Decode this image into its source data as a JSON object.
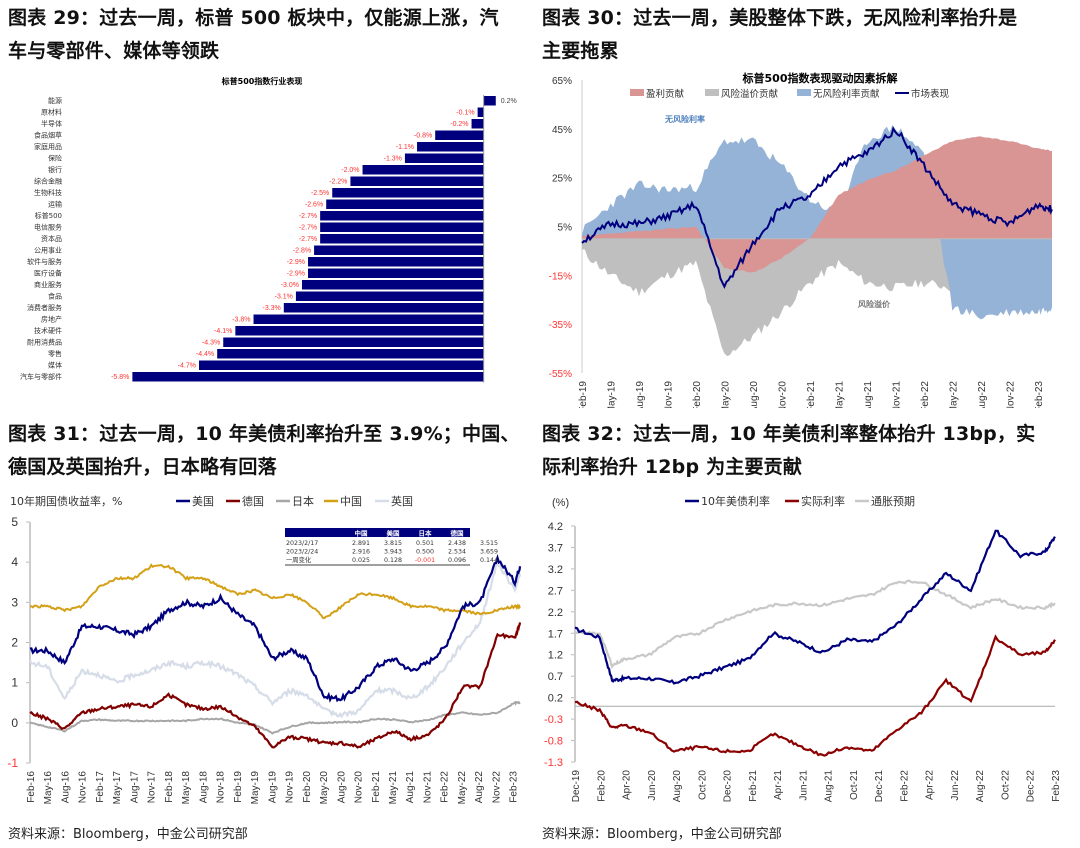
{
  "figures": [
    {
      "title_line1": "图表 29：过去一周，标普 500 板块中，仅能源上涨，汽",
      "title_line2": "车与零部件、媒体等领跌"
    },
    {
      "title_line1": "图表 30：过去一周，美股整体下跌，无风险利率抬升是",
      "title_line2": "主要拖累"
    },
    {
      "title_line1": "图表 31：过去一周，10 年美债利率抬升至 3.9%；中国、",
      "title_line2": "德国及英国抬升，日本略有回落",
      "source": "资料来源：Bloomberg，中金公司研究部"
    },
    {
      "title_line1": "图表 32：过去一周，10 年美债利率整体抬升 13bp，实",
      "title_line2": "际利率抬升 12bp 为主要贡献",
      "source": "资料来源：Bloomberg，中金公司研究部"
    }
  ],
  "colors": {
    "navy": "#00007f",
    "negative_label": "#ff3333",
    "earnings": "#d99594",
    "risk_premium": "#bfbfbf",
    "riskfree": "#95b3d7",
    "germany": "#800000",
    "japan": "#a6a6a6",
    "china": "#d4a017",
    "uk": "#d6dde8",
    "real_rate": "#8b0000",
    "inflation": "#c8c8c8"
  },
  "chart_data": [
    {
      "type": "bar",
      "orientation": "horizontal",
      "title": "标普500指数行业表现",
      "categories": [
        "能源",
        "原材料",
        "半导体",
        "食品烟草",
        "家庭用品",
        "保险",
        "银行",
        "综合金融",
        "生物科技",
        "运输",
        "标普500",
        "电信服务",
        "资本品",
        "公用事业",
        "软件与服务",
        "医疗设备",
        "商业服务",
        "食品",
        "消费者服务",
        "房地产",
        "技术硬件",
        "耐用消费品",
        "零售",
        "媒体",
        "汽车与零部件"
      ],
      "values": [
        0.2,
        -0.1,
        -0.2,
        -0.8,
        -1.1,
        -1.3,
        -2.0,
        -2.2,
        -2.5,
        -2.6,
        -2.7,
        -2.7,
        -2.7,
        -2.8,
        -2.9,
        -2.9,
        -3.0,
        -3.1,
        -3.3,
        -3.8,
        -4.1,
        -4.3,
        -4.4,
        -4.7,
        -5.8
      ],
      "labels": [
        "0.2%",
        "-0.1%",
        "-0.2%",
        "-0.8%",
        "-1.1%",
        "-1.3%",
        "-2.0%",
        "-2.2%",
        "-2.5%",
        "-2.6%",
        "-2.7%",
        "-2.7%",
        "-2.7%",
        "-2.8%",
        "-2.9%",
        "-2.9%",
        "-3.0%",
        "-3.1%",
        "-3.3%",
        "-3.8%",
        "-4.1%",
        "-4.3%",
        "-4.4%",
        "-4.7%",
        "-5.8%"
      ],
      "unit": "%",
      "xlim": [
        -6.5,
        0.6
      ]
    },
    {
      "type": "area",
      "title": "标普500指数表现驱动因素拆解",
      "legend": [
        "盈利贡献",
        "风险溢价贡献",
        "无风险利率贡献",
        "市场表现"
      ],
      "legend_position": "top",
      "yticks": [
        "65%",
        "45%",
        "25%",
        "5%",
        "-15%",
        "-35%",
        "-55%"
      ],
      "ylim": [
        -55,
        65
      ],
      "xticks": [
        "Feb-19",
        "May-19",
        "Aug-19",
        "Nov-19",
        "Feb-20",
        "May-20",
        "Aug-20",
        "Nov-20",
        "Feb-21",
        "May-21",
        "Aug-21",
        "Nov-21",
        "Feb-22",
        "May-22",
        "Aug-22",
        "Nov-22",
        "Feb-23"
      ],
      "annotations": [
        "无风险利率",
        "风险溢价"
      ],
      "x": [
        0,
        1,
        2,
        3,
        4,
        5,
        6,
        7,
        8,
        9,
        10,
        11,
        12,
        13,
        14,
        15,
        16,
        16.5
      ],
      "series": [
        {
          "name": "盈利贡献",
          "values": [
            1,
            2,
            3,
            4,
            5,
            -12,
            -14,
            -8,
            0,
            18,
            24,
            28,
            34,
            40,
            42,
            40,
            37,
            36
          ]
        },
        {
          "name": "风险溢价贡献",
          "values": [
            -5,
            -15,
            -22,
            -15,
            -10,
            -48,
            -40,
            -30,
            -18,
            -10,
            -18,
            -20,
            -18,
            -20,
            -15,
            -8,
            -4,
            -3
          ]
        },
        {
          "name": "无风险利率贡献",
          "values": [
            3,
            14,
            22,
            20,
            21,
            40,
            40,
            30,
            16,
            10,
            40,
            46,
            35,
            -28,
            -32,
            -30,
            -30,
            -28
          ]
        },
        {
          "name": "市场表现",
          "values": [
            -1,
            6,
            6,
            9,
            14,
            -20,
            -2,
            13,
            17,
            30,
            35,
            45,
            30,
            14,
            10,
            6,
            14,
            12
          ]
        }
      ]
    },
    {
      "type": "line",
      "title": "10年期国债收益率，%",
      "legend": [
        "美国",
        "德国",
        "日本",
        "中国",
        "英国"
      ],
      "legend_position": "top",
      "yticks": [
        "5",
        "4",
        "3",
        "2",
        "1",
        "0",
        "-1"
      ],
      "ylim": [
        -1,
        5
      ],
      "xticks": [
        "Feb-16",
        "May-16",
        "Aug-16",
        "Nov-16",
        "Feb-17",
        "May-17",
        "Aug-17",
        "Nov-17",
        "Feb-18",
        "May-18",
        "Aug-18",
        "Nov-18",
        "Feb-19",
        "May-19",
        "Aug-19",
        "Nov-19",
        "Feb-20",
        "May-20",
        "Aug-20",
        "Nov-20",
        "Feb-21",
        "May-21",
        "Aug-21",
        "Nov-21",
        "Feb-22",
        "May-22",
        "Aug-22",
        "Nov-22",
        "Feb-23"
      ],
      "x": [
        0,
        1,
        2,
        3,
        4,
        5,
        6,
        7,
        8,
        9,
        10,
        11,
        12,
        13,
        14,
        15,
        16,
        17,
        18,
        19,
        20,
        21,
        22,
        23,
        24,
        25,
        26,
        27,
        28,
        28.3
      ],
      "series": [
        {
          "name": "美国",
          "values": [
            1.8,
            1.8,
            1.5,
            2.4,
            2.4,
            2.3,
            2.2,
            2.4,
            2.8,
            3.0,
            2.9,
            3.1,
            2.7,
            2.4,
            1.6,
            1.8,
            1.6,
            0.65,
            0.6,
            0.9,
            1.4,
            1.6,
            1.3,
            1.5,
            1.9,
            2.9,
            3.0,
            4.1,
            3.5,
            3.9
          ]
        },
        {
          "name": "德国",
          "values": [
            0.25,
            0.1,
            -0.15,
            0.25,
            0.35,
            0.4,
            0.45,
            0.4,
            0.7,
            0.45,
            0.35,
            0.4,
            0.15,
            -0.1,
            -0.6,
            -0.35,
            -0.4,
            -0.5,
            -0.5,
            -0.6,
            -0.4,
            -0.2,
            -0.4,
            -0.3,
            0.1,
            0.9,
            0.9,
            2.2,
            2.1,
            2.5
          ]
        },
        {
          "name": "日本",
          "values": [
            0.0,
            -0.1,
            -0.2,
            0.05,
            0.08,
            0.05,
            0.05,
            0.05,
            0.05,
            0.05,
            0.1,
            0.1,
            0.0,
            -0.05,
            -0.25,
            -0.1,
            0.0,
            0.0,
            0.02,
            0.02,
            0.1,
            0.08,
            0.02,
            0.07,
            0.2,
            0.25,
            0.2,
            0.25,
            0.5,
            0.5
          ]
        },
        {
          "name": "中国",
          "values": [
            2.9,
            2.9,
            2.8,
            2.9,
            3.4,
            3.6,
            3.6,
            3.9,
            3.9,
            3.6,
            3.6,
            3.4,
            3.2,
            3.3,
            3.1,
            3.2,
            3.0,
            2.6,
            2.9,
            3.2,
            3.2,
            3.1,
            2.9,
            2.9,
            2.8,
            2.8,
            2.7,
            2.8,
            2.9,
            2.9
          ]
        },
        {
          "name": "英国",
          "values": [
            1.5,
            1.4,
            0.6,
            1.3,
            1.2,
            1.0,
            1.2,
            1.3,
            1.5,
            1.4,
            1.5,
            1.4,
            1.2,
            0.9,
            0.5,
            0.8,
            0.7,
            0.3,
            0.2,
            0.3,
            0.8,
            0.8,
            0.6,
            0.9,
            1.4,
            2.0,
            2.5,
            4.0,
            3.3,
            3.7
          ]
        }
      ],
      "table": {
        "headers": [
          "",
          "中国",
          "美国",
          "日本",
          "德国",
          "英国"
        ],
        "rows": [
          [
            "2023/2/17",
            "2.891",
            "3.815",
            "0.501",
            "2.438",
            "3.515"
          ],
          [
            "2023/2/24",
            "2.916",
            "3.943",
            "0.500",
            "2.534",
            "3.659"
          ],
          [
            "一周变化",
            "0.025",
            "0.128",
            "-0.001",
            "0.096",
            "0.144"
          ]
        ]
      }
    },
    {
      "type": "line",
      "title": "",
      "ylabel": "(%)",
      "legend": [
        "10年美债利率",
        "实际利率",
        "通胀预期"
      ],
      "legend_position": "top",
      "yticks": [
        "4.2",
        "3.7",
        "3.2",
        "2.7",
        "2.2",
        "1.7",
        "1.2",
        "0.7",
        "0.2",
        "-0.3",
        "-0.8",
        "-1.3"
      ],
      "ylim": [
        -1.3,
        4.2
      ],
      "xticks": [
        "Dec-19",
        "Feb-20",
        "Apr-20",
        "Jun-20",
        "Aug-20",
        "Oct-20",
        "Dec-20",
        "Feb-21",
        "Apr-21",
        "Jun-21",
        "Aug-21",
        "Oct-21",
        "Dec-21",
        "Feb-22",
        "Apr-22",
        "Jun-22",
        "Aug-22",
        "Oct-22",
        "Dec-22",
        "Feb-23"
      ],
      "x": [
        0,
        1,
        1.5,
        2,
        3,
        4,
        5,
        6,
        7,
        8,
        9,
        10,
        11,
        12,
        13,
        14,
        15,
        16,
        17,
        18,
        19,
        19.4
      ],
      "series": [
        {
          "name": "10年美债利率",
          "values": [
            1.8,
            1.6,
            0.6,
            0.65,
            0.65,
            0.55,
            0.7,
            0.9,
            1.1,
            1.7,
            1.5,
            1.25,
            1.55,
            1.5,
            1.9,
            2.5,
            3.1,
            2.7,
            4.1,
            3.5,
            3.6,
            3.95
          ]
        },
        {
          "name": "实际利率",
          "values": [
            0.1,
            -0.1,
            -0.5,
            -0.45,
            -0.6,
            -1.05,
            -0.95,
            -1.05,
            -1.05,
            -0.65,
            -0.9,
            -1.15,
            -0.95,
            -1.05,
            -0.55,
            -0.15,
            0.6,
            0.1,
            1.6,
            1.2,
            1.25,
            1.55
          ]
        },
        {
          "name": "通胀预期",
          "values": [
            1.7,
            1.7,
            0.95,
            1.1,
            1.2,
            1.6,
            1.7,
            2.0,
            2.2,
            2.35,
            2.4,
            2.35,
            2.5,
            2.6,
            2.9,
            2.9,
            2.6,
            2.3,
            2.5,
            2.3,
            2.3,
            2.4
          ]
        }
      ]
    }
  ]
}
